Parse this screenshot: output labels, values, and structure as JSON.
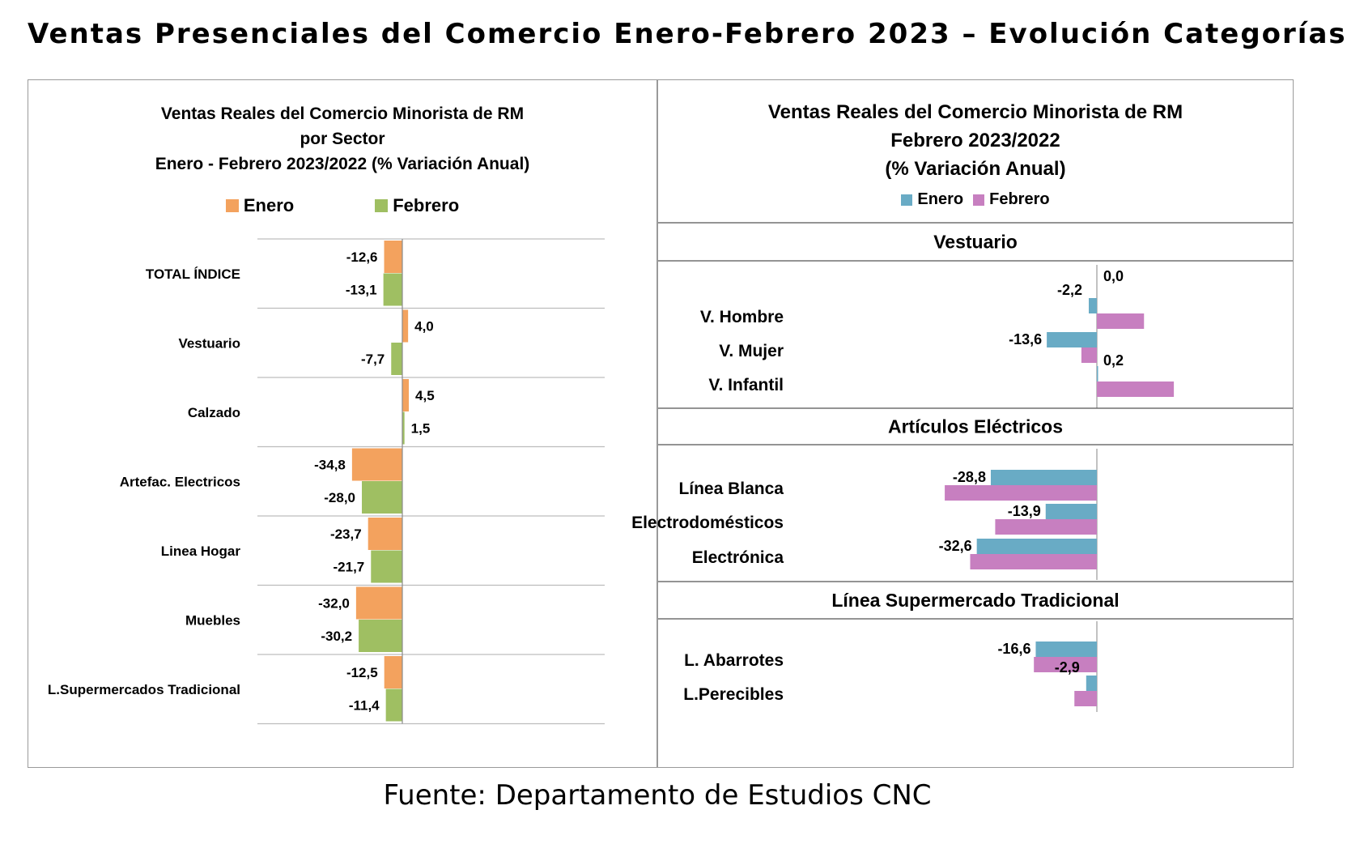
{
  "page_title": "Ventas Presenciales del Comercio Enero-Febrero 2023 – Evolución Categorías",
  "footer": "Fuente: Departamento de Estudios CNC",
  "colors": {
    "enero_left": "#f3a25e",
    "febrero_left": "#9fbf62",
    "enero_right": "#69abc5",
    "febrero_right": "#c77fc0"
  },
  "chart_data": [
    {
      "type": "bar",
      "orientation": "horizontal",
      "title_lines": [
        "Ventas Reales del Comercio Minorista de RM",
        "por Sector",
        "Enero - Febrero 2023/2022 (% Variación Anual)"
      ],
      "legend": [
        "Enero",
        "Febrero"
      ],
      "legend_placement": "top",
      "categories": [
        "TOTAL ÍNDICE",
        "Vestuario",
        "Calzado",
        "Artefac. Electricos",
        "Linea Hogar",
        "Muebles",
        "L.Supermercados Tradicional"
      ],
      "series": [
        {
          "name": "Enero",
          "values": [
            -12.6,
            4.0,
            4.5,
            -34.8,
            -23.7,
            -32.0,
            -12.5
          ],
          "labels": [
            "-12,6",
            "4,0",
            "4,5",
            "-34,8",
            "-23,7",
            "-32,0",
            "-12,5"
          ]
        },
        {
          "name": "Febrero",
          "values": [
            -13.1,
            -7.7,
            1.5,
            -28.0,
            -21.7,
            -30.2,
            -11.4
          ],
          "labels": [
            "-13,1",
            "-7,7",
            "1,5",
            "-28,0",
            "-21,7",
            "-30,2",
            "-11,4"
          ]
        }
      ],
      "grid": "category separators"
    },
    {
      "type": "bar",
      "orientation": "horizontal",
      "title_lines": [
        "Ventas Reales del Comercio Minorista de RM",
        "Febrero 2023/2022",
        "(% Variación Anual)"
      ],
      "legend": [
        "Enero",
        "Febrero"
      ],
      "legend_placement": "top",
      "groups": [
        {
          "name": "Vestuario",
          "categories": [
            "V. Hombre",
            "V. Mujer",
            "V. Infantil"
          ],
          "enero": [
            -2.2,
            -13.6,
            0.2
          ],
          "enero_labels": [
            "-2,2",
            "-13,6",
            "0,2"
          ],
          "febrero": [
            12.8,
            -4.2,
            20.9
          ],
          "febrero_labels": [
            "",
            "",
            ""
          ],
          "extra_label": "0,0"
        },
        {
          "name": "Artículos Eléctricos",
          "categories": [
            "Línea Blanca",
            "Electrodomésticos",
            "Electrónica"
          ],
          "enero": [
            -28.8,
            -13.9,
            -32.6
          ],
          "enero_labels": [
            "-28,8",
            "-13,9",
            "-32,6"
          ],
          "febrero": [
            -41.3,
            -27.6,
            -34.4
          ],
          "febrero_labels": [
            "",
            "",
            ""
          ]
        },
        {
          "name": "Línea Supermercado Tradicional",
          "categories": [
            "L. Abarrotes",
            "L.Perecibles"
          ],
          "enero": [
            -16.6,
            -2.9
          ],
          "enero_labels": [
            "-16,6",
            "-2,9"
          ],
          "febrero": [
            -17.1,
            -6.1
          ],
          "febrero_labels": [
            "",
            ""
          ]
        }
      ]
    }
  ]
}
